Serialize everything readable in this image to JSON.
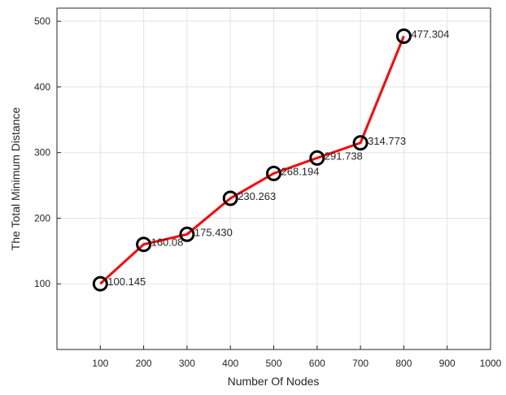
{
  "chart_data": {
    "type": "line",
    "title": "",
    "xlabel": "Number Of Nodes",
    "ylabel": "The Total Minimum Distance",
    "xlim": [
      0,
      1000
    ],
    "ylim": [
      0,
      520
    ],
    "xticks": [
      100,
      200,
      300,
      400,
      500,
      600,
      700,
      800,
      900,
      1000
    ],
    "yticks": [
      100,
      200,
      300,
      400,
      500
    ],
    "grid": true,
    "legend": "none",
    "series": [
      {
        "x": [
          100,
          200,
          300,
          400,
          500,
          600,
          700,
          800
        ],
        "y": [
          100.145,
          160.08,
          175.43,
          230.263,
          268.194,
          291.738,
          314.773,
          477.304
        ],
        "labels": [
          "100.145",
          "160.08",
          "175.430",
          "230.263",
          "268.194",
          "291.738",
          "314.773",
          "477.304"
        ],
        "line_color": "#ff0000",
        "marker_color": "#000000",
        "marker": "circle"
      }
    ]
  }
}
